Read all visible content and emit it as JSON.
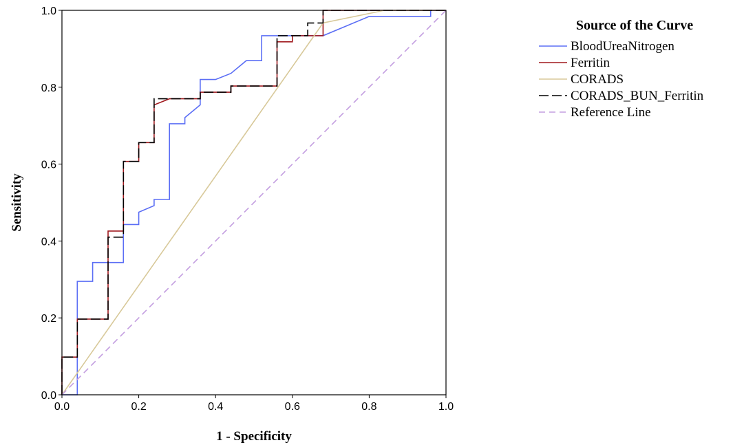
{
  "chart_data": {
    "type": "line",
    "xlabel": "1 - Specificity",
    "ylabel": "Sensitivity",
    "xlim": [
      0.0,
      1.0
    ],
    "ylim": [
      0.0,
      1.0
    ],
    "x_ticks": [
      0.0,
      0.2,
      0.4,
      0.6,
      0.8,
      1.0
    ],
    "y_ticks": [
      0.0,
      0.2,
      0.4,
      0.6,
      0.8,
      1.0
    ],
    "x_tick_labels": [
      "0.0",
      "0.2",
      "0.4",
      "0.6",
      "0.8",
      "1.0"
    ],
    "y_tick_labels": [
      "0.0",
      "0.2",
      "0.4",
      "0.6",
      "0.8",
      "1.0"
    ],
    "grid": false,
    "legend": {
      "title": "Source of the Curve",
      "placement": "outside-right-top"
    },
    "series": [
      {
        "name": "BloodUreaNitrogen",
        "color": "#5b6ef5",
        "dash": "solid",
        "points": [
          [
            0.0,
            0.0
          ],
          [
            0.04,
            0.0
          ],
          [
            0.04,
            0.295
          ],
          [
            0.08,
            0.295
          ],
          [
            0.08,
            0.344
          ],
          [
            0.16,
            0.344
          ],
          [
            0.16,
            0.443
          ],
          [
            0.2,
            0.443
          ],
          [
            0.2,
            0.475
          ],
          [
            0.24,
            0.492
          ],
          [
            0.24,
            0.508
          ],
          [
            0.28,
            0.508
          ],
          [
            0.28,
            0.705
          ],
          [
            0.32,
            0.705
          ],
          [
            0.32,
            0.721
          ],
          [
            0.36,
            0.754
          ],
          [
            0.36,
            0.82
          ],
          [
            0.4,
            0.82
          ],
          [
            0.44,
            0.836
          ],
          [
            0.48,
            0.869
          ],
          [
            0.52,
            0.869
          ],
          [
            0.52,
            0.934
          ],
          [
            0.68,
            0.934
          ],
          [
            0.8,
            0.984
          ],
          [
            0.96,
            0.984
          ],
          [
            0.96,
            1.0
          ],
          [
            1.0,
            1.0
          ]
        ]
      },
      {
        "name": "Ferritin",
        "color": "#a0191e",
        "dash": "solid",
        "points": [
          [
            0.0,
            0.0
          ],
          [
            0.0,
            0.098
          ],
          [
            0.04,
            0.098
          ],
          [
            0.04,
            0.197
          ],
          [
            0.12,
            0.197
          ],
          [
            0.12,
            0.426
          ],
          [
            0.16,
            0.426
          ],
          [
            0.16,
            0.607
          ],
          [
            0.2,
            0.607
          ],
          [
            0.2,
            0.656
          ],
          [
            0.24,
            0.656
          ],
          [
            0.24,
            0.754
          ],
          [
            0.28,
            0.77
          ],
          [
            0.36,
            0.77
          ],
          [
            0.36,
            0.787
          ],
          [
            0.44,
            0.787
          ],
          [
            0.44,
            0.803
          ],
          [
            0.56,
            0.803
          ],
          [
            0.56,
            0.918
          ],
          [
            0.6,
            0.918
          ],
          [
            0.6,
            0.934
          ],
          [
            0.68,
            0.934
          ],
          [
            0.68,
            1.0
          ],
          [
            1.0,
            1.0
          ]
        ]
      },
      {
        "name": "CORADS",
        "color": "#d8c99a",
        "dash": "solid",
        "points": [
          [
            0.0,
            0.0
          ],
          [
            0.68,
            0.967
          ],
          [
            0.84,
            1.0
          ],
          [
            1.0,
            1.0
          ]
        ]
      },
      {
        "name": "CORADS_BUN_Ferritin",
        "color": "#000000",
        "dash": "long-dash",
        "points": [
          [
            0.0,
            0.0
          ],
          [
            0.0,
            0.098
          ],
          [
            0.04,
            0.098
          ],
          [
            0.04,
            0.197
          ],
          [
            0.12,
            0.197
          ],
          [
            0.12,
            0.41
          ],
          [
            0.16,
            0.41
          ],
          [
            0.16,
            0.607
          ],
          [
            0.2,
            0.607
          ],
          [
            0.2,
            0.656
          ],
          [
            0.24,
            0.656
          ],
          [
            0.24,
            0.77
          ],
          [
            0.36,
            0.77
          ],
          [
            0.36,
            0.787
          ],
          [
            0.44,
            0.787
          ],
          [
            0.44,
            0.803
          ],
          [
            0.56,
            0.803
          ],
          [
            0.56,
            0.934
          ],
          [
            0.64,
            0.934
          ],
          [
            0.64,
            0.967
          ],
          [
            0.68,
            0.967
          ],
          [
            0.68,
            1.0
          ],
          [
            1.0,
            1.0
          ]
        ]
      },
      {
        "name": "Reference Line",
        "color": "#c39ee0",
        "dash": "dashed",
        "points": [
          [
            0.0,
            0.0
          ],
          [
            1.0,
            1.0
          ]
        ]
      }
    ]
  }
}
